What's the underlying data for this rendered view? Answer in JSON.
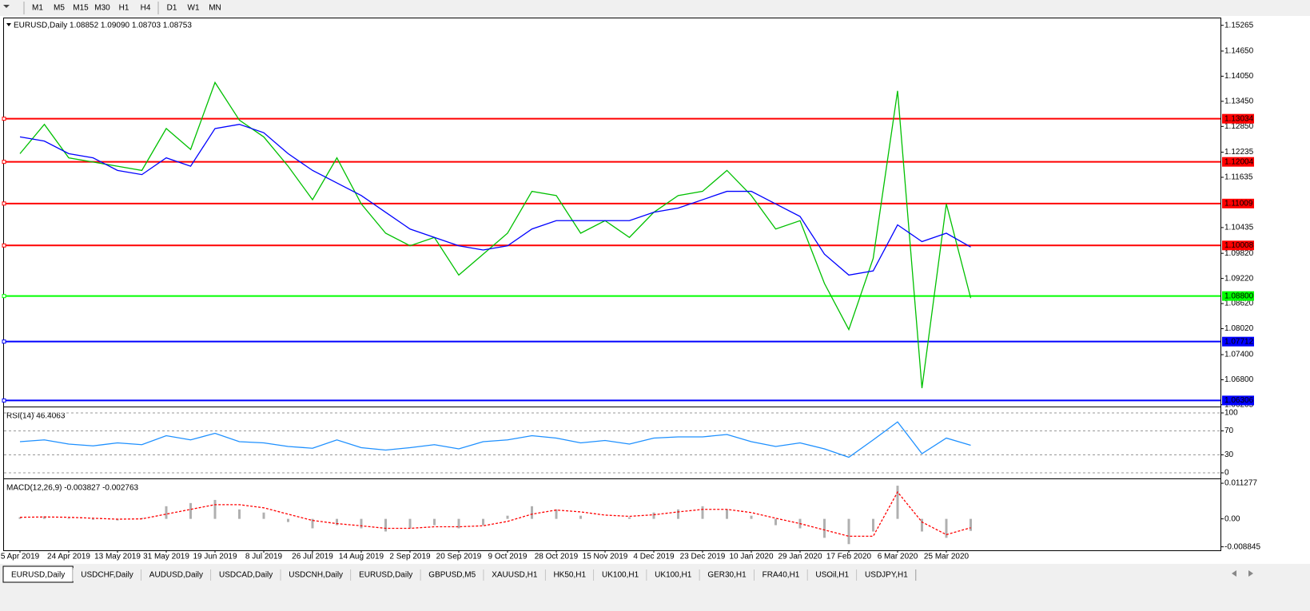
{
  "toolbar": {
    "timeframes": [
      "M1",
      "M5",
      "M15",
      "M30",
      "H1",
      "H4",
      "D1",
      "W1",
      "MN"
    ]
  },
  "chart_data": [
    {
      "type": "line",
      "title": "EURUSD,Daily  1.08852 1.09090 1.08703 1.08753",
      "categories": [
        "5 Apr 2019",
        null,
        "24 Apr 2019",
        null,
        "13 May 2019",
        null,
        "31 May 2019",
        null,
        "19 Jun 2019",
        null,
        "8 Jul 2019",
        null,
        "26 Jul 2019",
        null,
        "14 Aug 2019",
        null,
        "2 Sep 2019",
        null,
        "20 Sep 2019",
        null,
        "9 Oct 2019",
        null,
        "28 Oct 2019",
        null,
        "15 Nov 2019",
        null,
        "4 Dec 2019",
        null,
        "23 Dec 2019",
        null,
        "10 Jan 2020",
        null,
        "29 Jan 2020",
        null,
        "17 Feb 2020",
        null,
        "6 Mar 2020",
        null,
        "25 Mar 2020",
        null
      ],
      "series": [
        {
          "color": "#00c000",
          "values": [
            1.122,
            1.129,
            1.121,
            1.12,
            1.119,
            1.118,
            1.128,
            1.123,
            1.139,
            1.13,
            1.126,
            1.119,
            1.111,
            1.121,
            1.11,
            1.103,
            1.1,
            1.102,
            1.093,
            1.098,
            1.103,
            1.113,
            1.112,
            1.103,
            1.106,
            1.102,
            1.108,
            1.112,
            1.113,
            1.118,
            1.112,
            1.104,
            1.106,
            1.091,
            1.08,
            1.097,
            1.137,
            1.066,
            1.11,
            1.0875
          ]
        },
        {
          "color": "#0000ff",
          "values": [
            1.126,
            1.125,
            1.122,
            1.121,
            1.118,
            1.117,
            1.121,
            1.119,
            1.128,
            1.129,
            1.127,
            1.122,
            1.118,
            1.115,
            1.112,
            1.108,
            1.104,
            1.102,
            1.1,
            1.099,
            1.1,
            1.104,
            1.106,
            1.106,
            1.106,
            1.106,
            1.108,
            1.109,
            1.111,
            1.113,
            1.113,
            1.11,
            1.107,
            1.098,
            1.093,
            1.094,
            1.105,
            1.101,
            1.103,
            1.0997
          ]
        }
      ],
      "levels": [
        {
          "value": 1.13034,
          "color": "#ff0000"
        },
        {
          "value": 1.12004,
          "color": "#ff0000"
        },
        {
          "value": 1.11009,
          "color": "#ff0000"
        },
        {
          "value": 1.10008,
          "color": "#ff0000"
        },
        {
          "value": 1.088,
          "label": "1.08800",
          "color": "#00ff00"
        },
        {
          "value": 1.07712,
          "color": "#0000ff"
        },
        {
          "value": 1.06306,
          "color": "#0000ff"
        }
      ],
      "ylim": [
        1.0618,
        1.1545
      ],
      "yticks": [
        1.15265,
        {
          "value": 1.1465,
          "label": "1.14650"
        },
        {
          "value": 1.1405,
          "label": "1.14050"
        },
        {
          "value": 1.1345,
          "label": "1.13450"
        },
        {
          "value": 1.1285,
          "label": "1.12850"
        },
        1.12235,
        1.11635,
        1.10435,
        {
          "value": 1.0982,
          "label": "1.09820"
        },
        {
          "value": 1.0922,
          "label": "1.09220"
        },
        {
          "value": 1.0862,
          "label": "1.08620"
        },
        {
          "value": 1.0802,
          "label": "1.08020"
        },
        {
          "value": 1.074,
          "label": "1.07400"
        },
        {
          "value": 1.068,
          "label": "1.06800"
        },
        1.06205
      ]
    },
    {
      "type": "line",
      "title": "RSI(14) 46.4063",
      "grid": true,
      "series": [
        {
          "color": "#1e90ff",
          "values": [
            52,
            55,
            48,
            45,
            50,
            47,
            62,
            55,
            66,
            52,
            50,
            44,
            41,
            55,
            42,
            38,
            42,
            47,
            40,
            52,
            55,
            62,
            58,
            50,
            54,
            48,
            58,
            60,
            60,
            64,
            52,
            44,
            50,
            40,
            26,
            55,
            85,
            32,
            58,
            46
          ]
        }
      ],
      "ylim": [
        -8,
        108
      ],
      "yticks": [
        100,
        70,
        30,
        0
      ]
    },
    {
      "type": "bar",
      "title": "MACD(12,26,9) -0.003827 -0.002763",
      "series": [
        {
          "type": "bar",
          "color": "#b0b0b0",
          "values": [
            0.0005,
            0.0008,
            0.0002,
            -0.0003,
            -0.0005,
            0.0003,
            0.004,
            0.005,
            0.006,
            0.003,
            0.002,
            -0.001,
            -0.003,
            -0.002,
            -0.003,
            -0.004,
            -0.003,
            -0.002,
            -0.003,
            -0.002,
            0.001,
            0.004,
            0.003,
            0.001,
            0,
            0.0005,
            0.002,
            0.003,
            0.004,
            0.003,
            0.001,
            -0.002,
            -0.003,
            -0.006,
            -0.008,
            -0.004,
            0.0105,
            -0.004,
            -0.006,
            -0.0038
          ]
        },
        {
          "type": "line",
          "color": "#ff0000",
          "dashed": true,
          "values": [
            0.0005,
            0.0006,
            0.0005,
            0.0002,
            -0.0001,
            0,
            0.0015,
            0.003,
            0.0045,
            0.0045,
            0.0035,
            0.0015,
            -0.0005,
            -0.0015,
            -0.0022,
            -0.003,
            -0.003,
            -0.0025,
            -0.0025,
            -0.0022,
            -0.0008,
            0.0015,
            0.0028,
            0.0022,
            0.0012,
            0.0008,
            0.0013,
            0.0022,
            0.003,
            0.003,
            0.002,
            0.0002,
            -0.0015,
            -0.0035,
            -0.0055,
            -0.0055,
            0.0085,
            -0.001,
            -0.005,
            -0.0028
          ]
        }
      ],
      "ylim": [
        -0.0097,
        0.0123
      ],
      "yticks": [
        0.011277,
        {
          "value": 0,
          "label": "0.00"
        },
        -0.008845
      ]
    }
  ],
  "tabs": [
    "EURUSD,Daily",
    "USDCHF,Daily",
    "AUDUSD,Daily",
    "USDCAD,Daily",
    "USDCNH,Daily",
    "EURUSD,Daily",
    "GBPUSD,M5",
    "XAUUSD,H1",
    "HK50,H1",
    "UK100,H1",
    "UK100,H1",
    "GER30,H1",
    "FRA40,H1",
    "USOil,H1",
    "USDJPY,H1"
  ],
  "active_tab": 0
}
